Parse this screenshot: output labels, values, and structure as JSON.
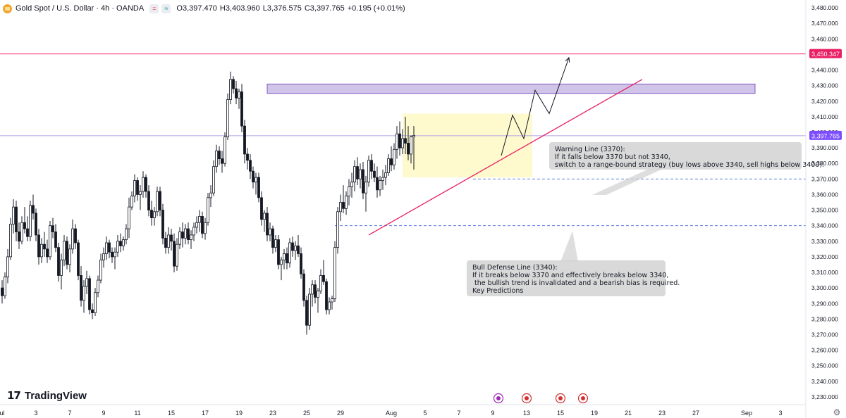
{
  "header": {
    "title": "Gold Spot / U.S. Dollar · 4h · OANDA",
    "pill1": "=",
    "pill2": "≈",
    "open_label": "O",
    "open_value": "3,397.470",
    "high_label": "H",
    "high_value": "3,403.960",
    "low_label": "L",
    "low_value": "3,376.575",
    "close_label": "C",
    "close_value": "3,397.765",
    "change_value": "+0.195 (+0.01%)"
  },
  "annotations": {
    "warning": "Warning Line (3370):\nIf it falls below 3370 but not 3340,\nswitch to a range-bound strategy (buy lows above 3340, sell highs below 3400).",
    "bull": "Bull Defense Line (3340):\nIf it breaks below 3370 and effectively breaks below 3340,\n the bullish trend is invalidated and a bearish bias is required.\nKey Predictions"
  },
  "branding": {
    "logo_mark": "17",
    "name": "TradingView"
  },
  "colors": {
    "up": "#131722",
    "down": "#131722",
    "up_body": "#ffffff",
    "accent_line": "#e91e63",
    "price_label": "#7c4dff",
    "target_label": "#e91e63",
    "zone_purple": "#b39ddb",
    "zone_yellow": "#fff9c4",
    "dashed": "#5b7ee5"
  },
  "chart_data": {
    "type": "candlestick",
    "title": "Gold Spot / U.S. Dollar · 4h · OANDA",
    "timeframe": "4h",
    "ylim": [
      3225,
      3485
    ],
    "y_ticks": [
      3230,
      3240,
      3250,
      3260,
      3270,
      3280,
      3290,
      3300,
      3310,
      3320,
      3330,
      3340,
      3350,
      3360,
      3370,
      3380,
      3390,
      3400,
      3410,
      3420,
      3430,
      3440,
      3450,
      3460,
      3470,
      3480
    ],
    "y_tick_labels": [
      "3,230.000",
      "3,240.000",
      "3,250.000",
      "3,260.000",
      "3,270.000",
      "3,280.000",
      "3,290.000",
      "3,300.000",
      "3,310.000",
      "3,320.000",
      "3,330.000",
      "3,340.000",
      "3,350.000",
      "3,360.000",
      "3,370.000",
      "3,380.000",
      "3,390.000",
      "3,400.000",
      "3,410.000",
      "3,420.000",
      "3,430.000",
      "3,440.000",
      "3,450.000",
      "3,460.000",
      "3,470.000",
      "3,480.000"
    ],
    "x_ticks": [
      {
        "label": "ul",
        "idx": 0
      },
      {
        "label": "3",
        "idx": 12
      },
      {
        "label": "7",
        "idx": 24
      },
      {
        "label": "9",
        "idx": 36
      },
      {
        "label": "11",
        "idx": 48
      },
      {
        "label": "15",
        "idx": 60
      },
      {
        "label": "17",
        "idx": 72
      },
      {
        "label": "19",
        "idx": 84
      },
      {
        "label": "23",
        "idx": 96
      },
      {
        "label": "25",
        "idx": 108
      },
      {
        "label": "29",
        "idx": 120
      },
      {
        "label": "Aug",
        "idx": 138
      },
      {
        "label": "5",
        "idx": 150
      },
      {
        "label": "7",
        "idx": 162
      },
      {
        "label": "9",
        "idx": 174
      },
      {
        "label": "13",
        "idx": 186
      },
      {
        "label": "15",
        "idx": 198
      },
      {
        "label": "19",
        "idx": 210
      },
      {
        "label": "21",
        "idx": 222
      },
      {
        "label": "23",
        "idx": 234
      },
      {
        "label": "27",
        "idx": 246
      },
      {
        "label": "Sep",
        "idx": 264
      },
      {
        "label": "3",
        "idx": 276
      }
    ],
    "price_labels": {
      "current": "3,397.765",
      "target": "3,450.347"
    },
    "levels": {
      "current": 3397.765,
      "target": 3450.347,
      "warning": 3370,
      "bull_defense": 3340
    },
    "zones": [
      {
        "name": "resistance",
        "from_idx": 94,
        "to_idx": 267,
        "low": 3425,
        "high": 3431
      },
      {
        "name": "consolidation",
        "from_idx": 142,
        "to_idx": 188,
        "low": 3371,
        "high": 3412
      }
    ],
    "trendline": {
      "from": {
        "idx": 130,
        "price": 3334
      },
      "to": {
        "idx": 227,
        "price": 3434
      }
    },
    "projection": [
      {
        "idx": 177,
        "price": 3385
      },
      {
        "idx": 181,
        "price": 3411
      },
      {
        "idx": 185,
        "price": 3396
      },
      {
        "idx": 189,
        "price": 3427
      },
      {
        "idx": 194,
        "price": 3412
      },
      {
        "idx": 201,
        "price": 3448
      }
    ],
    "candles_ohlc": [
      [
        3300,
        3305,
        3290,
        3295
      ],
      [
        3295,
        3310,
        3293,
        3307
      ],
      [
        3307,
        3325,
        3303,
        3320
      ],
      [
        3320,
        3345,
        3318,
        3341
      ],
      [
        3341,
        3357,
        3335,
        3352
      ],
      [
        3352,
        3356,
        3330,
        3336
      ],
      [
        3336,
        3342,
        3325,
        3330
      ],
      [
        3330,
        3346,
        3328,
        3342
      ],
      [
        3342,
        3352,
        3335,
        3338
      ],
      [
        3338,
        3346,
        3330,
        3333
      ],
      [
        3333,
        3356,
        3330,
        3353
      ],
      [
        3353,
        3360,
        3344,
        3348
      ],
      [
        3348,
        3351,
        3330,
        3334
      ],
      [
        3334,
        3338,
        3315,
        3320
      ],
      [
        3320,
        3332,
        3316,
        3328
      ],
      [
        3328,
        3336,
        3320,
        3325
      ],
      [
        3325,
        3331,
        3316,
        3320
      ],
      [
        3320,
        3343,
        3318,
        3340
      ],
      [
        3340,
        3345,
        3332,
        3336
      ],
      [
        3336,
        3341,
        3323,
        3326
      ],
      [
        3326,
        3329,
        3304,
        3308
      ],
      [
        3308,
        3322,
        3299,
        3318
      ],
      [
        3318,
        3334,
        3314,
        3330
      ],
      [
        3330,
        3333,
        3312,
        3315
      ],
      [
        3315,
        3328,
        3310,
        3325
      ],
      [
        3325,
        3344,
        3322,
        3338
      ],
      [
        3338,
        3341,
        3325,
        3329
      ],
      [
        3329,
        3331,
        3305,
        3308
      ],
      [
        3308,
        3314,
        3288,
        3292
      ],
      [
        3292,
        3305,
        3284,
        3301
      ],
      [
        3301,
        3311,
        3296,
        3306
      ],
      [
        3306,
        3308,
        3283,
        3286
      ],
      [
        3286,
        3290,
        3280,
        3284
      ],
      [
        3284,
        3300,
        3282,
        3297
      ],
      [
        3297,
        3308,
        3294,
        3305
      ],
      [
        3305,
        3322,
        3303,
        3318
      ],
      [
        3318,
        3326,
        3313,
        3322
      ],
      [
        3322,
        3333,
        3318,
        3329
      ],
      [
        3329,
        3331,
        3319,
        3323
      ],
      [
        3323,
        3326,
        3316,
        3320
      ],
      [
        3320,
        3326,
        3312,
        3323
      ],
      [
        3323,
        3334,
        3320,
        3330
      ],
      [
        3330,
        3335,
        3323,
        3327
      ],
      [
        3327,
        3333,
        3324,
        3331
      ],
      [
        3331,
        3341,
        3328,
        3338
      ],
      [
        3338,
        3358,
        3332,
        3352
      ],
      [
        3352,
        3362,
        3350,
        3359
      ],
      [
        3359,
        3373,
        3355,
        3369
      ],
      [
        3369,
        3371,
        3356,
        3360
      ],
      [
        3360,
        3366,
        3350,
        3362
      ],
      [
        3362,
        3375,
        3358,
        3371
      ],
      [
        3371,
        3373,
        3358,
        3362
      ],
      [
        3362,
        3366,
        3346,
        3350
      ],
      [
        3350,
        3356,
        3340,
        3345
      ],
      [
        3345,
        3352,
        3340,
        3349
      ],
      [
        3349,
        3365,
        3346,
        3362
      ],
      [
        3362,
        3365,
        3346,
        3350
      ],
      [
        3350,
        3354,
        3328,
        3332
      ],
      [
        3332,
        3336,
        3322,
        3326
      ],
      [
        3326,
        3339,
        3322,
        3334
      ],
      [
        3334,
        3338,
        3324,
        3330
      ],
      [
        3330,
        3335,
        3310,
        3314
      ],
      [
        3314,
        3332,
        3311,
        3328
      ],
      [
        3328,
        3339,
        3325,
        3336
      ],
      [
        3336,
        3342,
        3326,
        3332
      ],
      [
        3332,
        3341,
        3328,
        3338
      ],
      [
        3338,
        3342,
        3328,
        3331
      ],
      [
        3331,
        3337,
        3325,
        3334
      ],
      [
        3334,
        3342,
        3330,
        3339
      ],
      [
        3339,
        3346,
        3335,
        3342
      ],
      [
        3342,
        3350,
        3336,
        3346
      ],
      [
        3346,
        3349,
        3332,
        3335
      ],
      [
        3335,
        3345,
        3331,
        3342
      ],
      [
        3342,
        3361,
        3340,
        3358
      ],
      [
        3358,
        3366,
        3352,
        3361
      ],
      [
        3361,
        3382,
        3359,
        3378
      ],
      [
        3378,
        3392,
        3374,
        3388
      ],
      [
        3388,
        3391,
        3379,
        3383
      ],
      [
        3383,
        3388,
        3374,
        3380
      ],
      [
        3380,
        3400,
        3378,
        3397
      ],
      [
        3397,
        3425,
        3395,
        3421
      ],
      [
        3421,
        3439,
        3418,
        3434
      ],
      [
        3434,
        3436,
        3425,
        3428
      ],
      [
        3428,
        3433,
        3418,
        3422
      ],
      [
        3422,
        3428,
        3415,
        3426
      ],
      [
        3426,
        3431,
        3400,
        3404
      ],
      [
        3404,
        3408,
        3380,
        3386
      ],
      [
        3386,
        3390,
        3376,
        3382
      ],
      [
        3382,
        3386,
        3370,
        3375
      ],
      [
        3375,
        3378,
        3364,
        3368
      ],
      [
        3368,
        3374,
        3360,
        3371
      ],
      [
        3371,
        3374,
        3355,
        3358
      ],
      [
        3358,
        3362,
        3340,
        3344
      ],
      [
        3344,
        3350,
        3336,
        3348
      ],
      [
        3348,
        3352,
        3330,
        3334
      ],
      [
        3334,
        3342,
        3330,
        3338
      ],
      [
        3338,
        3340,
        3322,
        3326
      ],
      [
        3326,
        3334,
        3323,
        3331
      ],
      [
        3331,
        3334,
        3312,
        3315
      ],
      [
        3315,
        3320,
        3305,
        3318
      ],
      [
        3318,
        3325,
        3312,
        3322
      ],
      [
        3322,
        3326,
        3312,
        3316
      ],
      [
        3316,
        3332,
        3313,
        3329
      ],
      [
        3329,
        3333,
        3320,
        3324
      ],
      [
        3324,
        3330,
        3318,
        3327
      ],
      [
        3327,
        3334,
        3320,
        3322
      ],
      [
        3322,
        3326,
        3306,
        3309
      ],
      [
        3309,
        3312,
        3288,
        3292
      ],
      [
        3292,
        3295,
        3270,
        3276
      ],
      [
        3276,
        3300,
        3273,
        3296
      ],
      [
        3296,
        3305,
        3288,
        3302
      ],
      [
        3302,
        3305,
        3290,
        3294
      ],
      [
        3294,
        3300,
        3284,
        3298
      ],
      [
        3298,
        3312,
        3296,
        3308
      ],
      [
        3308,
        3318,
        3302,
        3304
      ],
      [
        3304,
        3306,
        3283,
        3286
      ],
      [
        3286,
        3294,
        3283,
        3291
      ],
      [
        3291,
        3295,
        3286,
        3293
      ],
      [
        3293,
        3330,
        3291,
        3326
      ],
      [
        3326,
        3352,
        3322,
        3349
      ],
      [
        3349,
        3360,
        3343,
        3355
      ],
      [
        3355,
        3366,
        3348,
        3351
      ],
      [
        3351,
        3362,
        3347,
        3359
      ],
      [
        3359,
        3370,
        3353,
        3365
      ],
      [
        3365,
        3374,
        3358,
        3368
      ],
      [
        3368,
        3382,
        3362,
        3378
      ],
      [
        3378,
        3384,
        3366,
        3370
      ],
      [
        3370,
        3380,
        3364,
        3376
      ],
      [
        3376,
        3381,
        3357,
        3361
      ],
      [
        3361,
        3372,
        3349,
        3368
      ],
      [
        3368,
        3385,
        3365,
        3382
      ],
      [
        3382,
        3386,
        3370,
        3375
      ],
      [
        3375,
        3380,
        3368,
        3371
      ],
      [
        3371,
        3378,
        3358,
        3363
      ],
      [
        3363,
        3372,
        3359,
        3369
      ],
      [
        3369,
        3376,
        3363,
        3371
      ],
      [
        3371,
        3379,
        3366,
        3374
      ],
      [
        3374,
        3386,
        3372,
        3383
      ],
      [
        3383,
        3391,
        3375,
        3379
      ],
      [
        3379,
        3393,
        3376,
        3389
      ],
      [
        3389,
        3404,
        3383,
        3399
      ],
      [
        3399,
        3407,
        3385,
        3390
      ],
      [
        3390,
        3402,
        3386,
        3396
      ],
      [
        3396,
        3410,
        3386,
        3393
      ],
      [
        3393,
        3404,
        3382,
        3386
      ],
      [
        3386,
        3398,
        3380,
        3397
      ],
      [
        3397,
        3404,
        3376,
        3398
      ]
    ]
  }
}
